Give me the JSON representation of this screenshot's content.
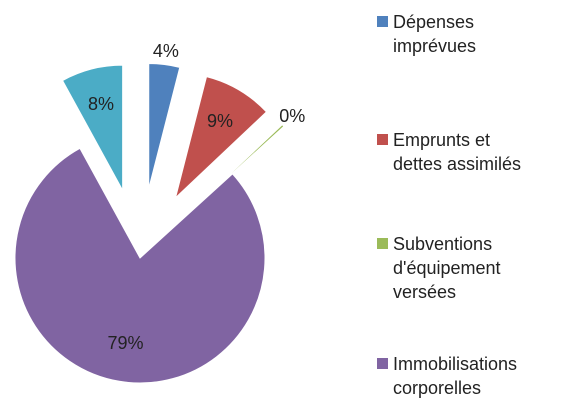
{
  "chart_data": {
    "type": "pie",
    "categories": [
      "Dépenses imprévues",
      "Emprunts et dettes assimilés",
      "Subventions d'équipement versées",
      "Immobilisations corporelles",
      null
    ],
    "values": [
      4,
      9,
      0.3,
      79,
      8
    ],
    "value_labels": [
      "4%",
      "9%",
      "0%",
      "79%",
      "8%"
    ],
    "colors": [
      "#4f81bd",
      "#c0504d",
      "#9bbb59",
      "#8064a2",
      "#4bacc6"
    ],
    "legend": "right"
  }
}
